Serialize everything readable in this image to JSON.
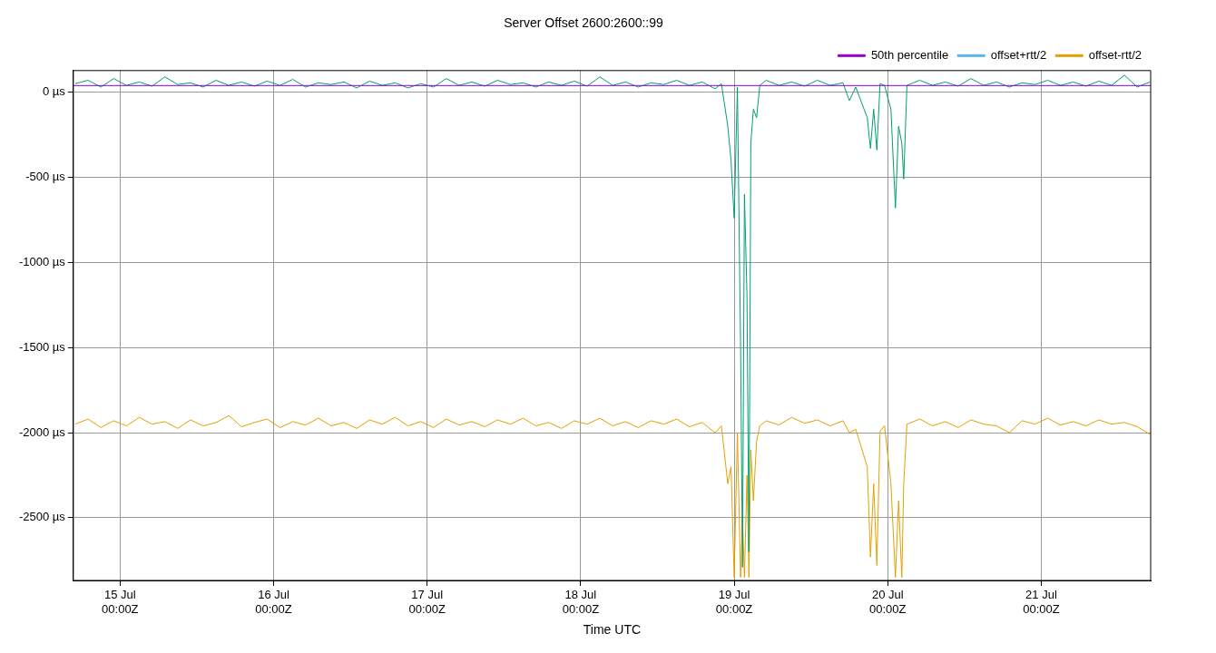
{
  "chart_data": {
    "type": "line",
    "title": "Server Offset 2600:2600::99",
    "xlabel": "Time UTC",
    "xlim": [
      "--07-14T16:42",
      "--07-21T17:06"
    ],
    "ylim": [
      -2868,
      127
    ],
    "xticks": [
      {
        "value": "--07-15T00:00",
        "label": "15 Jul\n00:00Z"
      },
      {
        "value": "--07-16T00:00",
        "label": "16 Jul\n00:00Z"
      },
      {
        "value": "--07-17T00:00",
        "label": "17 Jul\n00:00Z"
      },
      {
        "value": "--07-18T00:00",
        "label": "18 Jul\n00:00Z"
      },
      {
        "value": "--07-19T00:00",
        "label": "19 Jul\n00:00Z"
      },
      {
        "value": "--07-20T00:00",
        "label": "20 Jul\n00:00Z"
      },
      {
        "value": "--07-21T00:00",
        "label": "21 Jul\n00:00Z"
      }
    ],
    "yticks": [
      {
        "value": 0,
        "label": "0 µs"
      },
      {
        "value": -500,
        "label": "-500 µs"
      },
      {
        "value": -1000,
        "label": "-1000 µs"
      },
      {
        "value": -1500,
        "label": "-1500 µs"
      },
      {
        "value": -2000,
        "label": "-2000 µs"
      },
      {
        "value": -2500,
        "label": "-2500 µs"
      }
    ],
    "grid": true,
    "legend": "top right",
    "marker": "none",
    "line_style": "solid",
    "series": [
      {
        "name": "50th percentile",
        "color": "#9400d3",
        "x": [
          "--07-14T16:42",
          "--07-21T17:06"
        ],
        "values": [
          39,
          39
        ]
      },
      {
        "color": "#009e73",
        "x": [
          "--07-14T17:00",
          "--07-14T19:00",
          "--07-14T21:00",
          "--07-14T23:00",
          "--07-15T01:00",
          "--07-15T03:00",
          "--07-15T05:00",
          "--07-15T07:00",
          "--07-15T09:00",
          "--07-15T11:00",
          "--07-15T13:00",
          "--07-15T15:00",
          "--07-15T17:00",
          "--07-15T19:00",
          "--07-15T21:00",
          "--07-15T23:00",
          "--07-16T01:00",
          "--07-16T03:00",
          "--07-16T05:00",
          "--07-16T07:00",
          "--07-16T09:00",
          "--07-16T11:00",
          "--07-16T13:00",
          "--07-16T15:00",
          "--07-16T17:00",
          "--07-16T19:00",
          "--07-16T21:00",
          "--07-16T23:00",
          "--07-17T01:00",
          "--07-17T03:00",
          "--07-17T05:00",
          "--07-17T07:00",
          "--07-17T09:00",
          "--07-17T11:00",
          "--07-17T13:00",
          "--07-17T15:00",
          "--07-17T17:00",
          "--07-17T19:00",
          "--07-17T21:00",
          "--07-17T23:00",
          "--07-18T01:00",
          "--07-18T03:00",
          "--07-18T05:00",
          "--07-18T07:00",
          "--07-18T09:00",
          "--07-18T11:00",
          "--07-18T13:00",
          "--07-18T15:00",
          "--07-18T17:00",
          "--07-18T19:00",
          "--07-18T21:00",
          "--07-18T22:00",
          "--07-18T23:00",
          "--07-18T23:30",
          "--07-19T00:00",
          "--07-19T00:30",
          "--07-19T01:00",
          "--07-19T01:18",
          "--07-19T01:36",
          "--07-19T02:00",
          "--07-19T02:18",
          "--07-19T02:36",
          "--07-19T03:00",
          "--07-19T03:30",
          "--07-19T04:00",
          "--07-19T05:00",
          "--07-19T07:00",
          "--07-19T09:00",
          "--07-19T11:00",
          "--07-19T13:00",
          "--07-19T15:00",
          "--07-19T17:00",
          "--07-19T18:00",
          "--07-19T19:00",
          "--07-19T20:48",
          "--07-19T21:18",
          "--07-19T21:48",
          "--07-19T22:18",
          "--07-19T22:48",
          "--07-19T23:30",
          "--07-20T00:30",
          "--07-20T01:12",
          "--07-20T01:42",
          "--07-20T02:12",
          "--07-20T02:30",
          "--07-20T03:00",
          "--07-20T05:00",
          "--07-20T07:00",
          "--07-20T09:00",
          "--07-20T11:00",
          "--07-20T13:00",
          "--07-20T15:00",
          "--07-20T17:00",
          "--07-20T19:00",
          "--07-20T21:00",
          "--07-20T23:00",
          "--07-21T01:00",
          "--07-21T03:00",
          "--07-21T05:00",
          "--07-21T07:00",
          "--07-21T09:00",
          "--07-21T11:00",
          "--07-21T13:00",
          "--07-21T15:00",
          "--07-21T17:00"
        ],
        "values": [
          50,
          70,
          30,
          80,
          40,
          60,
          35,
          90,
          45,
          55,
          30,
          70,
          40,
          60,
          35,
          65,
          40,
          75,
          30,
          55,
          45,
          60,
          25,
          65,
          40,
          55,
          25,
          50,
          30,
          80,
          40,
          60,
          35,
          70,
          45,
          55,
          30,
          60,
          40,
          65,
          35,
          90,
          40,
          60,
          30,
          55,
          45,
          70,
          40,
          60,
          20,
          50,
          -200,
          -400,
          -740,
          30,
          -1500,
          -2790,
          -600,
          -1200,
          -2700,
          -300,
          -100,
          -150,
          40,
          70,
          40,
          60,
          35,
          70,
          40,
          55,
          -50,
          30,
          -150,
          -330,
          -100,
          -340,
          50,
          40,
          -100,
          -680,
          -200,
          -300,
          -510,
          40,
          70,
          40,
          60,
          35,
          80,
          40,
          60,
          30,
          55,
          45,
          70,
          40,
          60,
          35,
          65,
          40,
          100,
          30,
          60
        ]
      },
      {
        "name": "offset+rtt/2",
        "color": "#56b4e9"
      },
      {
        "name": "offset-rtt/2",
        "color": "#e69f00",
        "x": [
          "--07-14T17:00",
          "--07-14T19:00",
          "--07-14T21:00",
          "--07-14T23:00",
          "--07-15T01:00",
          "--07-15T03:00",
          "--07-15T05:00",
          "--07-15T07:00",
          "--07-15T09:00",
          "--07-15T11:00",
          "--07-15T13:00",
          "--07-15T15:00",
          "--07-15T17:00",
          "--07-15T19:00",
          "--07-15T21:00",
          "--07-15T23:00",
          "--07-16T01:00",
          "--07-16T03:00",
          "--07-16T05:00",
          "--07-16T07:00",
          "--07-16T09:00",
          "--07-16T11:00",
          "--07-16T13:00",
          "--07-16T15:00",
          "--07-16T17:00",
          "--07-16T19:00",
          "--07-16T21:00",
          "--07-16T23:00",
          "--07-17T01:00",
          "--07-17T03:00",
          "--07-17T05:00",
          "--07-17T07:00",
          "--07-17T09:00",
          "--07-17T11:00",
          "--07-17T13:00",
          "--07-17T15:00",
          "--07-17T17:00",
          "--07-17T19:00",
          "--07-17T21:00",
          "--07-17T23:00",
          "--07-18T01:00",
          "--07-18T03:00",
          "--07-18T05:00",
          "--07-18T07:00",
          "--07-18T09:00",
          "--07-18T11:00",
          "--07-18T13:00",
          "--07-18T15:00",
          "--07-18T17:00",
          "--07-18T19:00",
          "--07-18T21:00",
          "--07-18T22:00",
          "--07-18T23:00",
          "--07-18T23:30",
          "--07-19T00:00",
          "--07-19T00:30",
          "--07-19T01:00",
          "--07-19T01:18",
          "--07-19T01:36",
          "--07-19T02:00",
          "--07-19T02:18",
          "--07-19T02:36",
          "--07-19T03:00",
          "--07-19T03:30",
          "--07-19T04:00",
          "--07-19T05:00",
          "--07-19T07:00",
          "--07-19T09:00",
          "--07-19T11:00",
          "--07-19T13:00",
          "--07-19T15:00",
          "--07-19T17:00",
          "--07-19T18:00",
          "--07-19T19:00",
          "--07-19T20:48",
          "--07-19T21:18",
          "--07-19T21:48",
          "--07-19T22:18",
          "--07-19T22:48",
          "--07-19T23:30",
          "--07-20T00:30",
          "--07-20T01:12",
          "--07-20T01:42",
          "--07-20T02:12",
          "--07-20T02:30",
          "--07-20T03:00",
          "--07-20T05:00",
          "--07-20T07:00",
          "--07-20T09:00",
          "--07-20T11:00",
          "--07-20T13:00",
          "--07-20T15:00",
          "--07-20T17:00",
          "--07-20T19:00",
          "--07-20T21:00",
          "--07-20T23:00",
          "--07-21T01:00",
          "--07-21T03:00",
          "--07-21T05:00",
          "--07-21T07:00",
          "--07-21T09:00",
          "--07-21T11:00",
          "--07-21T13:00",
          "--07-21T15:00",
          "--07-21T17:00"
        ],
        "values": [
          -1950,
          -1920,
          -1970,
          -1930,
          -1960,
          -1910,
          -1950,
          -1935,
          -1975,
          -1925,
          -1960,
          -1940,
          -1900,
          -1965,
          -1940,
          -1920,
          -1970,
          -1935,
          -1955,
          -1915,
          -1960,
          -1940,
          -1975,
          -1925,
          -1950,
          -1910,
          -1960,
          -1935,
          -1970,
          -1920,
          -1955,
          -1935,
          -1965,
          -1925,
          -1950,
          -1915,
          -1960,
          -1940,
          -1975,
          -1930,
          -1950,
          -1915,
          -1960,
          -1935,
          -1970,
          -1930,
          -1950,
          -1920,
          -1965,
          -1940,
          -2000,
          -1960,
          -2300,
          -2200,
          -2850,
          -2000,
          -2850,
          -2500,
          -2850,
          -2250,
          -2850,
          -2100,
          -2400,
          -2050,
          -1960,
          -1930,
          -1955,
          -1910,
          -1945,
          -1925,
          -1960,
          -1930,
          -2000,
          -1980,
          -2200,
          -2730,
          -2300,
          -2780,
          -1990,
          -1960,
          -2300,
          -2850,
          -2400,
          -2850,
          -2300,
          -1950,
          -1920,
          -1960,
          -1935,
          -1970,
          -1925,
          -1950,
          -1960,
          -2000,
          -1930,
          -1950,
          -1915,
          -1955,
          -1935,
          -1960,
          -1925,
          -1950,
          -1940,
          -1965,
          -2010
        ]
      }
    ]
  }
}
